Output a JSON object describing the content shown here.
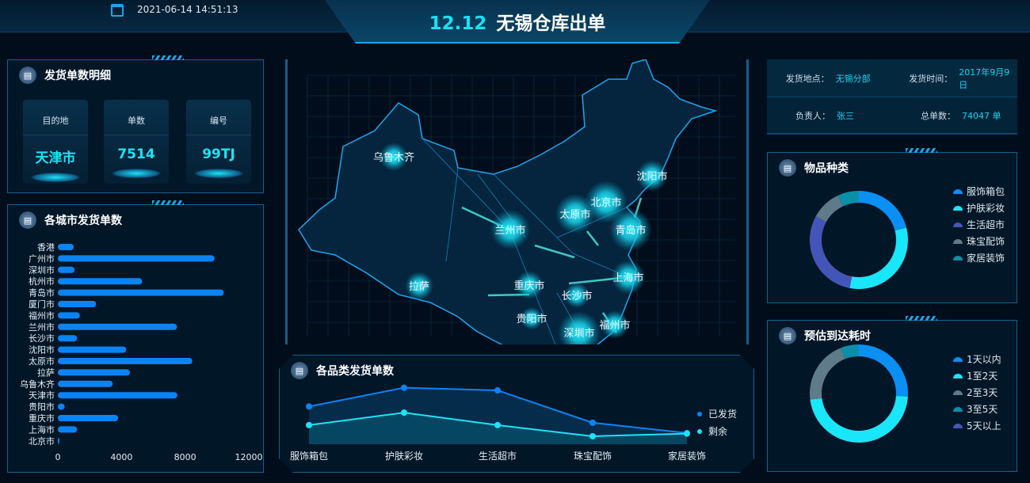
{
  "header": {
    "title_num": "12.12",
    "title_text": "无锡仓库出单",
    "datetime": "2021-06-14 14:51:13"
  },
  "detail": {
    "title": "发货单数明细",
    "cards": [
      {
        "label": "目的地",
        "value": "天津市"
      },
      {
        "label": "单数",
        "value": "7514"
      },
      {
        "label": "编号",
        "value": "99TJ"
      }
    ]
  },
  "info": {
    "location_label": "发货地点：",
    "location": "无锡分部",
    "time_label": "发货时间：",
    "time": "2017年9月9日",
    "manager_label": "负责人：",
    "manager": "张三",
    "total_label": "总单数：",
    "total": "74047 单"
  },
  "chart_data": [
    {
      "id": "city-orders",
      "title": "各城市发货单数",
      "type": "bar",
      "orientation": "horizontal",
      "categories": [
        "香港",
        "广州市",
        "深圳市",
        "杭州市",
        "青岛市",
        "厦门市",
        "福州市",
        "兰州市",
        "长沙市",
        "沈阳市",
        "太原市",
        "拉萨",
        "乌鲁木齐",
        "天津市",
        "贵阳市",
        "重庆市",
        "上海市",
        "北京市"
      ],
      "values": [
        1000,
        9850,
        1050,
        5300,
        10430,
        2400,
        1380,
        7490,
        1210,
        4300,
        8450,
        4530,
        3450,
        7514,
        430,
        3790,
        1210,
        50
      ],
      "xlim": [
        0,
        12000
      ],
      "xticks": [
        "0",
        "4000",
        "8000",
        "12000"
      ],
      "color": "#0a84f5"
    },
    {
      "id": "category-orders",
      "title": "各品类发货单数",
      "type": "area",
      "categories": [
        "服饰箱包",
        "护肤彩妆",
        "生活超市",
        "珠宝配饰",
        "家居装饰"
      ],
      "series": [
        {
          "name": "已发货",
          "values": [
            142,
            213,
            203,
            81,
            42
          ],
          "color": "#0a84f5"
        },
        {
          "name": "剩余",
          "values": [
            72,
            119,
            72,
            30,
            40
          ],
          "color": "#1de3f5"
        }
      ],
      "ylim": [
        0,
        240
      ]
    },
    {
      "id": "item-types",
      "title": "物品种类",
      "type": "pie",
      "donut": true,
      "labels": [
        "服饰箱包",
        "护肤彩妆",
        "生活超市",
        "珠宝配饰",
        "家居装饰"
      ],
      "values": [
        21,
        32,
        30,
        10,
        7
      ],
      "colors": [
        "#0a8ff5",
        "#1ae6fa",
        "#4455b8",
        "#5f7a88",
        "#0a8fa8"
      ]
    },
    {
      "id": "arrival-time",
      "title": "预估到达耗时",
      "type": "pie",
      "donut": true,
      "labels": [
        "1天以内",
        "1至2天",
        "2至3天",
        "3至5天",
        "5天以上"
      ],
      "values": [
        26,
        47,
        21,
        6,
        0
      ],
      "colors": [
        "#0a8ff5",
        "#1ae6fa",
        "#5f7a88",
        "#0a8fa8",
        "#4455b8"
      ]
    }
  ],
  "map": {
    "cities": [
      "乌鲁木齐",
      "拉萨",
      "兰州市",
      "重庆市",
      "贵阳市",
      "长沙市",
      "太原市",
      "北京市",
      "沈阳市",
      "青岛市",
      "上海市",
      "福州市",
      "深圳市"
    ]
  }
}
